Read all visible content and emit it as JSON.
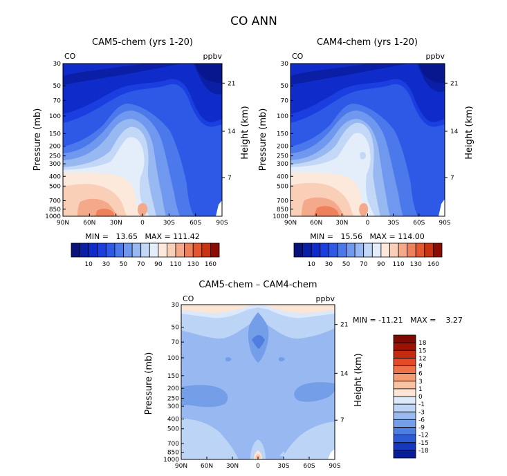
{
  "figure_title": "CO ANN",
  "colors": {
    "positive": [
      "#fce5d4",
      "#f9c3a3",
      "#f49b73",
      "#ee7046",
      "#e34a25",
      "#c42a10",
      "#9c1306",
      "#7d0b03"
    ],
    "negative": [
      "#dbe9fb",
      "#bcd4f6",
      "#98baf1",
      "#759ee9",
      "#4e7fe0",
      "#2d5bd6",
      "#1737bd",
      "#0a1c96"
    ],
    "abs": [
      "#08127a",
      "#0b1ea6",
      "#0f2ccb",
      "#1a3ee0",
      "#2e58e6",
      "#4b78ea",
      "#7098ee",
      "#98b8f2",
      "#c3d8f7",
      "#e4eefb",
      "#fde9dc",
      "#f9cfb8",
      "#f5a98b",
      "#ef805c",
      "#e4562f",
      "#c83314",
      "#8c0c04"
    ]
  },
  "chart_data": [
    {
      "type": "heatmap",
      "id": "cam5",
      "title": "CAM5-chem (yrs 1-20)",
      "left_label": "CO",
      "right_label": "ppbv",
      "xlabel": "",
      "ylabel": "Pressure (mb)",
      "ylabel_right": "Height (km)",
      "x_ticks": [
        "90N",
        "60N",
        "30N",
        "0",
        "30S",
        "60S",
        "90S"
      ],
      "y_ticks": [
        "30",
        "50",
        "70",
        "100",
        "150",
        "200",
        "250",
        "300",
        "400",
        "500",
        "700",
        "850",
        "1000"
      ],
      "height_ticks": [
        "21",
        "14",
        "7"
      ],
      "stats": "MIN =   13.65   MAX = 111.42",
      "levels": [
        "10",
        "30",
        "50",
        "70",
        "90",
        "110",
        "130",
        "160"
      ]
    },
    {
      "type": "heatmap",
      "id": "cam4",
      "title": "CAM4-chem (yrs 1-20)",
      "left_label": "CO",
      "right_label": "ppbv",
      "xlabel": "",
      "ylabel": "Pressure (mb)",
      "ylabel_right": "Height (km)",
      "x_ticks": [
        "90N",
        "60N",
        "30N",
        "0",
        "30S",
        "60S",
        "90S"
      ],
      "y_ticks": [
        "30",
        "50",
        "70",
        "100",
        "150",
        "200",
        "250",
        "300",
        "400",
        "500",
        "700",
        "850",
        "1000"
      ],
      "height_ticks": [
        "21",
        "14",
        "7"
      ],
      "stats": "MIN =   15.56   MAX = 114.00",
      "levels": [
        "10",
        "30",
        "50",
        "70",
        "90",
        "110",
        "130",
        "160"
      ]
    },
    {
      "type": "heatmap",
      "id": "diff",
      "title": "CAM5-chem – CAM4-chem",
      "left_label": "CO",
      "right_label": "ppbv",
      "xlabel": "",
      "ylabel": "Pressure (mb)",
      "ylabel_right": "Height (km)",
      "x_ticks": [
        "90N",
        "60N",
        "30N",
        "0",
        "30S",
        "60S",
        "90S"
      ],
      "y_ticks": [
        "30",
        "50",
        "70",
        "100",
        "150",
        "200",
        "250",
        "300",
        "400",
        "500",
        "700",
        "850",
        "1000"
      ],
      "height_ticks": [
        "21",
        "14",
        "7"
      ],
      "stats": "MIN = -11.21   MAX =    3.27",
      "levels": [
        "18",
        "15",
        "12",
        "9",
        "6",
        "3",
        "1",
        "0",
        "-1",
        "-3",
        "-6",
        "-9",
        "-12",
        "-15",
        "-18"
      ]
    }
  ]
}
